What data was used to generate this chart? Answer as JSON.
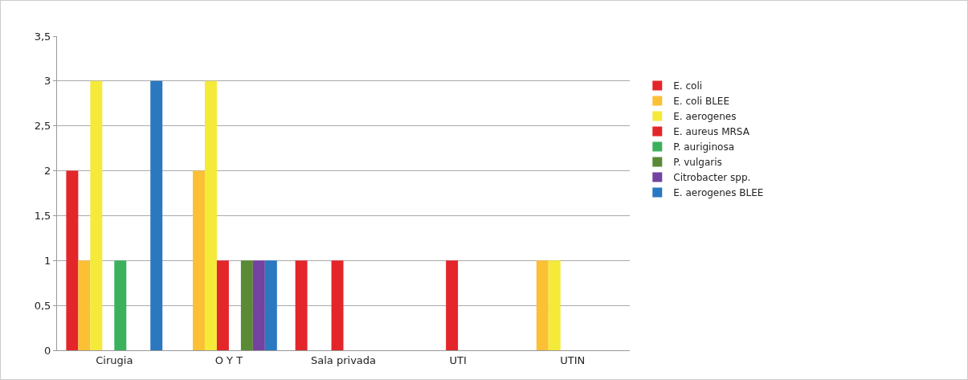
{
  "chart_data": {
    "type": "bar",
    "categories": [
      "Cirugia",
      "O Y T",
      "Sala privada",
      "UTI",
      "UTIN"
    ],
    "series": [
      {
        "name": "E. coli",
        "color": "#e3262a",
        "values": [
          2,
          0,
          1,
          0,
          0
        ]
      },
      {
        "name": "E. coli BLEE",
        "color": "#fbc034",
        "values": [
          1,
          2,
          0,
          0,
          1
        ]
      },
      {
        "name": "E. aerogenes",
        "color": "#f5ea3a",
        "values": [
          3,
          3,
          0,
          0,
          1
        ]
      },
      {
        "name": "E. aureus MRSA",
        "color": "#e3262a",
        "values": [
          0,
          1,
          1,
          1,
          0
        ]
      },
      {
        "name": "P. auriginosa",
        "color": "#3bb15d",
        "values": [
          1,
          0,
          0,
          0,
          0
        ]
      },
      {
        "name": "P. vulgaris",
        "color": "#5a8a35",
        "values": [
          0,
          1,
          0,
          0,
          0
        ]
      },
      {
        "name": "Citrobacter spp.",
        "color": "#7442a0",
        "values": [
          0,
          1,
          0,
          0,
          0
        ]
      },
      {
        "name": "E. aerogenes BLEE",
        "color": "#2a78c0",
        "values": [
          3,
          1,
          0,
          0,
          0
        ]
      }
    ],
    "ylim": [
      0,
      3.5
    ],
    "yticks": [
      0,
      {
        "value": 0.5,
        "label": "0,5"
      },
      1,
      {
        "value": 1.5,
        "label": "1,5"
      },
      2,
      {
        "value": 2.5,
        "label": "2,5"
      },
      3,
      {
        "value": 3.5,
        "label": "3,5"
      }
    ],
    "grid": "y",
    "legend": "right"
  }
}
